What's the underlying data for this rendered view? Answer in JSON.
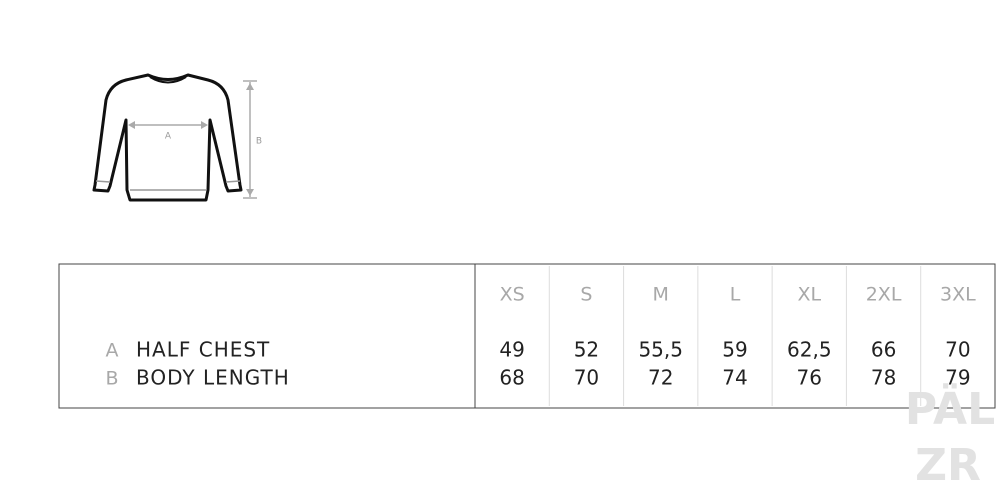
{
  "diagram": {
    "labels": [
      "A",
      "B"
    ]
  },
  "table": {
    "sizes": [
      "XS",
      "S",
      "M",
      "L",
      "XL",
      "2XL",
      "3XL"
    ],
    "rows": [
      {
        "key": "A",
        "label": "HALF CHEST",
        "values": [
          "49",
          "52",
          "55,5",
          "59",
          "62,5",
          "66",
          "70"
        ]
      },
      {
        "key": "B",
        "label": "BODY LENGTH",
        "values": [
          "68",
          "70",
          "72",
          "74",
          "76",
          "78",
          "79"
        ]
      }
    ]
  },
  "watermark": [
    "PÄL",
    "ZR"
  ]
}
